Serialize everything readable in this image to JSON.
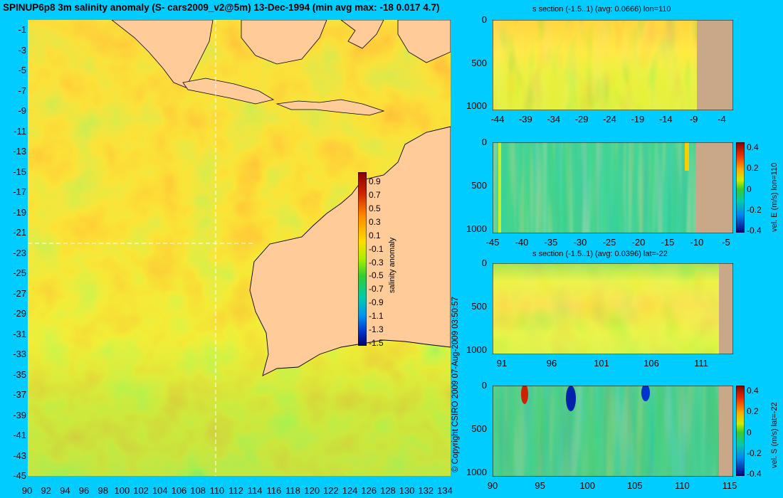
{
  "title": "SPINUP6p8 3m salinity anomaly (S- cars2009_v2@5m) 13-Dec-1994 (min avg max: -18 0.017 4.7)",
  "copyright": "© Copyright CSIRO 2009   07-Aug-2009 03:50:57",
  "colors": {
    "background": "#00ccff",
    "land": "#ffcc99",
    "section_land": "#c8a888",
    "crosshair": "#ffffff"
  },
  "map": {
    "y_ticks": [
      "-1",
      "-3",
      "-5",
      "-7",
      "-9",
      "-11",
      "-13",
      "-15",
      "-17",
      "-19",
      "-21",
      "-23",
      "-25",
      "-27",
      "-29",
      "-31",
      "-33",
      "-35",
      "-37",
      "-39",
      "-41",
      "-43",
      "-45"
    ],
    "x_ticks": [
      "90",
      "92",
      "94",
      "96",
      "98",
      "100",
      "102",
      "104",
      "106",
      "108",
      "110",
      "112",
      "114",
      "116",
      "118",
      "120",
      "122",
      "124",
      "126",
      "128",
      "130",
      "132",
      "134"
    ],
    "colorbar_label": "salinity anomaly",
    "colorbar_ticks": [
      "0.9",
      "0.7",
      "0.5",
      "0.3",
      "0.1",
      "-0.1",
      "-0.3",
      "-0.5",
      "-0.7",
      "-0.9",
      "-1.1",
      "-1.3",
      "-1.5"
    ]
  },
  "panels": [
    {
      "title": "s section (-1.5..1) (avg: 0.0666) lon=110",
      "y_ticks": [
        "0",
        "500",
        "1000"
      ],
      "x_ticks": [
        "-44",
        "-39",
        "-34",
        "-29",
        "-24",
        "-19",
        "-14",
        "-9",
        "-4"
      ],
      "colorbar": null
    },
    {
      "title": "",
      "y_ticks": [
        "0",
        "500",
        "1000"
      ],
      "x_ticks": [
        "-45",
        "-40",
        "-35",
        "-30",
        "-25",
        "-20",
        "-15",
        "-10",
        "-5"
      ],
      "colorbar": {
        "label": "vel. E (m/s) lon=110",
        "ticks": [
          "0.4",
          "0.2",
          "0",
          "-0.2",
          "-0.4"
        ]
      }
    },
    {
      "title": "s section (-1.5..1) (avg: 0.0396) lat=-22",
      "y_ticks": [
        "0",
        "500",
        "1000"
      ],
      "x_ticks": [
        "91",
        "96",
        "101",
        "106",
        "111"
      ],
      "colorbar": null
    },
    {
      "title": "",
      "y_ticks": [
        "0",
        "500",
        "1000"
      ],
      "x_ticks": [
        "90",
        "95",
        "100",
        "105",
        "110",
        "115"
      ],
      "colorbar": {
        "label": "vel. S (m/s) lat=-22",
        "ticks": [
          "0.4",
          "0.2",
          "0",
          "-0.2",
          "-0.4"
        ]
      }
    }
  ]
}
